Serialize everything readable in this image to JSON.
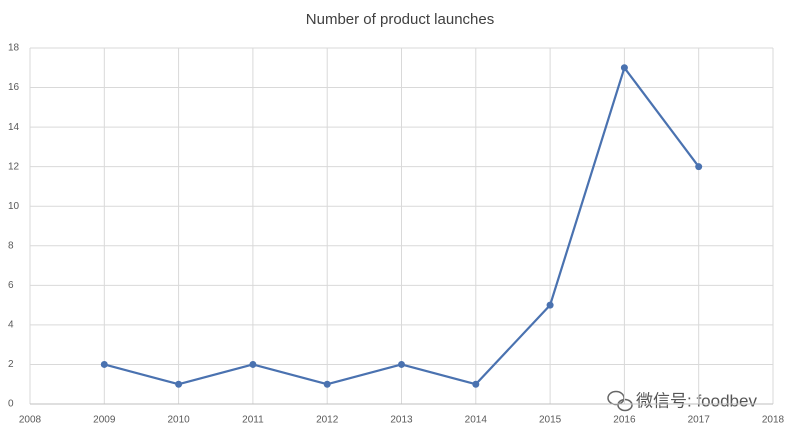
{
  "chart_data": {
    "type": "line",
    "title": "Number of product launches",
    "x": [
      2009,
      2010,
      2011,
      2012,
      2013,
      2014,
      2015,
      2016,
      2017
    ],
    "series": [
      {
        "name": "Number of product launches",
        "color": "#4a72b0",
        "values": [
          2,
          1,
          2,
          1,
          2,
          1,
          5,
          17,
          12
        ]
      }
    ],
    "xlim": [
      2008,
      2018
    ],
    "xticks": [
      2008,
      2009,
      2010,
      2011,
      2012,
      2013,
      2014,
      2015,
      2016,
      2017,
      2018
    ],
    "ylim": [
      0,
      18
    ],
    "yticks": [
      0,
      2,
      4,
      6,
      8,
      10,
      12,
      14,
      16,
      18
    ],
    "grid": true,
    "annotation": "微信号: foodbev"
  }
}
